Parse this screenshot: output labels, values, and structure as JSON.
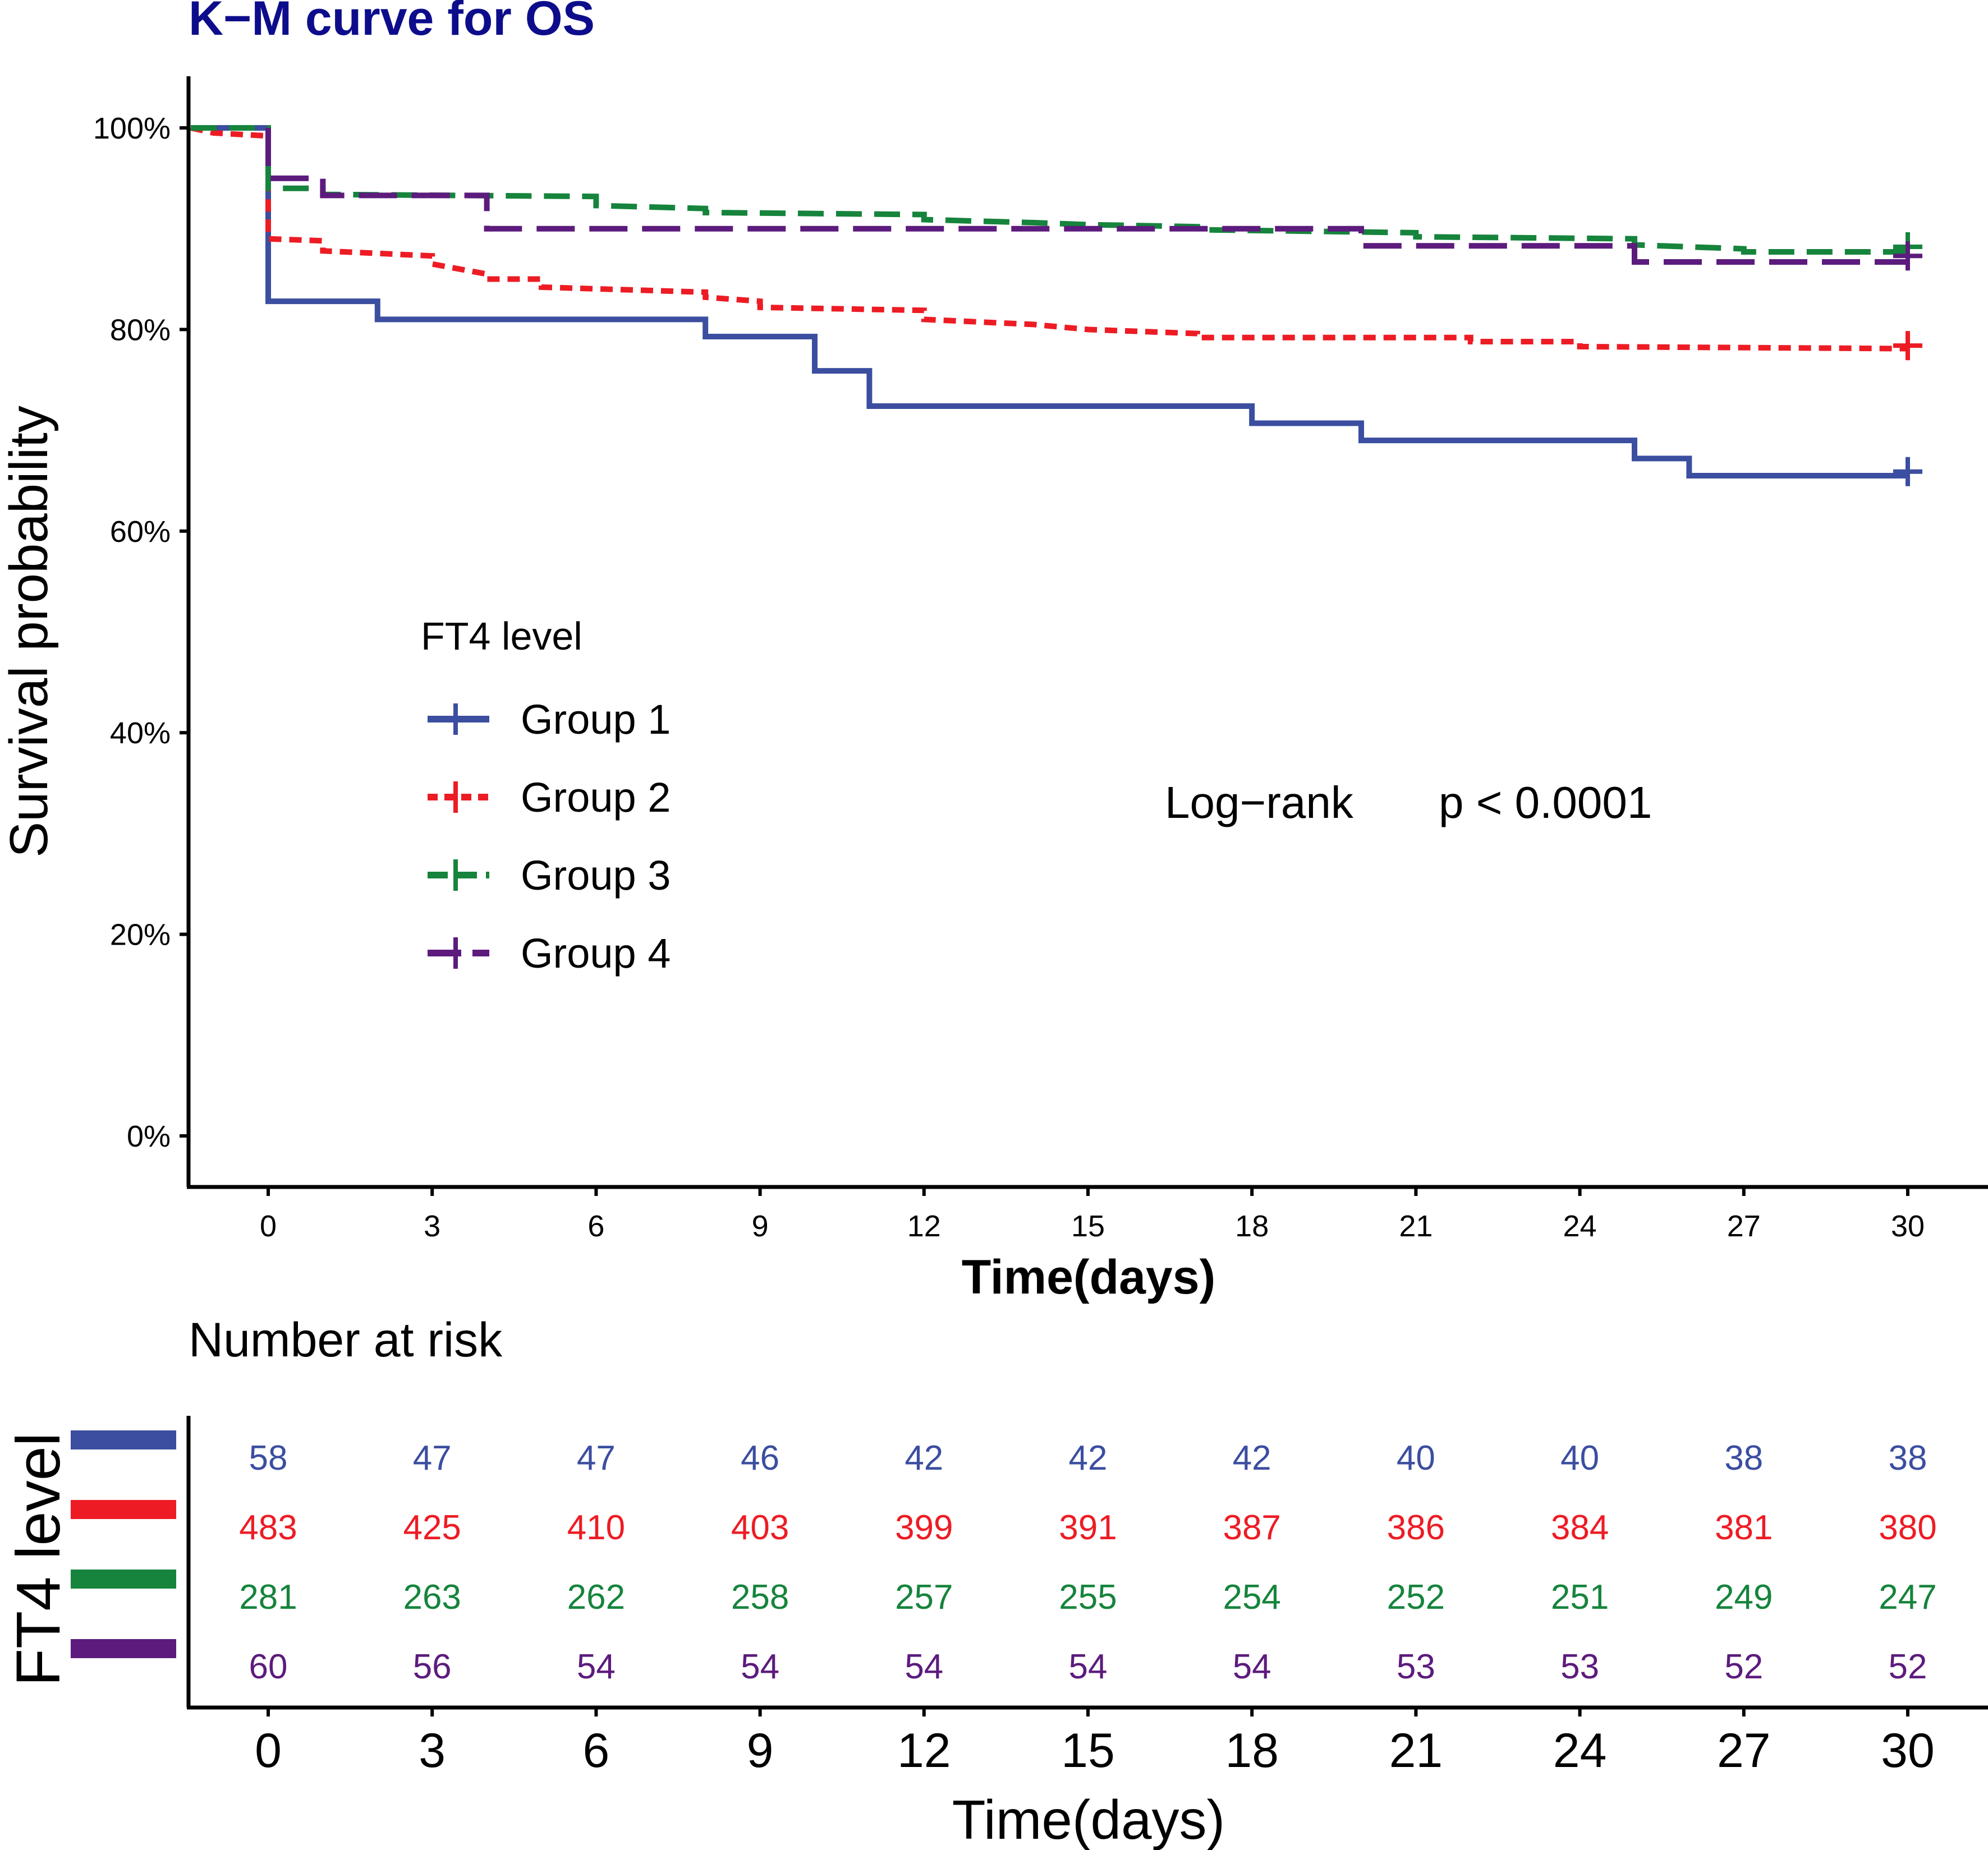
{
  "chart_data": {
    "type": "line",
    "subtype": "kaplan-meier step",
    "title": "K−M curve for OS",
    "title_color": "#0d0d8c",
    "xlabel": "Time(days)",
    "ylabel": "Survival probability",
    "xlim": [
      -1.5,
      31.5
    ],
    "ylim": [
      -5,
      105
    ],
    "xticks": [
      0,
      3,
      6,
      9,
      12,
      15,
      18,
      21,
      24,
      27,
      30
    ],
    "yticks": [
      0,
      20,
      40,
      60,
      80,
      100
    ],
    "ytick_labels": [
      "0%",
      "20%",
      "40%",
      "60%",
      "80%",
      "100%"
    ],
    "legend": {
      "title": "FT4 level",
      "position": "left-middle",
      "labels": [
        "Group 1",
        "Group 2",
        "Group 3",
        "Group 4"
      ]
    },
    "annotation": {
      "method": "Log−rank",
      "pvalue": "p < 0.0001"
    },
    "series": [
      {
        "name": "Group 1",
        "color": "#3b4ea0",
        "dash": "solid",
        "steps": [
          [
            -1.5,
            100
          ],
          [
            0,
            100
          ],
          [
            0,
            82.8
          ],
          [
            2,
            82.8
          ],
          [
            2,
            81
          ],
          [
            8,
            81
          ],
          [
            8,
            79.3
          ],
          [
            10,
            79.3
          ],
          [
            10,
            75.9
          ],
          [
            11,
            75.9
          ],
          [
            11,
            72.4
          ],
          [
            18,
            72.4
          ],
          [
            18,
            70.7
          ],
          [
            20,
            70.7
          ],
          [
            20,
            69
          ],
          [
            25,
            69
          ],
          [
            25,
            67.2
          ],
          [
            26,
            67.2
          ],
          [
            26,
            65.5
          ],
          [
            30,
            65.5
          ]
        ],
        "censor": [
          [
            30,
            65.9
          ]
        ]
      },
      {
        "name": "Group 2",
        "color": "#ed1c24",
        "dash": "dotted",
        "steps": [
          [
            -1.5,
            100
          ],
          [
            -1,
            99.5
          ],
          [
            0,
            99.2
          ],
          [
            0,
            89
          ],
          [
            1,
            88.8
          ],
          [
            1,
            87.8
          ],
          [
            3,
            87.3
          ],
          [
            3,
            86.5
          ],
          [
            4,
            85.5
          ],
          [
            4,
            85
          ],
          [
            5,
            85
          ],
          [
            5,
            84.2
          ],
          [
            8,
            83.7
          ],
          [
            8,
            83.2
          ],
          [
            9,
            82.8
          ],
          [
            9,
            82.2
          ],
          [
            12,
            81.9
          ],
          [
            12,
            81
          ],
          [
            14,
            80.5
          ],
          [
            15,
            80
          ],
          [
            17,
            79.6
          ],
          [
            17,
            79.2
          ],
          [
            22,
            79.2
          ],
          [
            22,
            78.8
          ],
          [
            24,
            78.8
          ],
          [
            24,
            78.3
          ],
          [
            30,
            78.1
          ]
        ],
        "censor": [
          [
            30,
            78.4
          ]
        ]
      },
      {
        "name": "Group 3",
        "color": "#16843c",
        "dash": "dashed",
        "steps": [
          [
            -1.5,
            100
          ],
          [
            0,
            100
          ],
          [
            0,
            94
          ],
          [
            1,
            94
          ],
          [
            1,
            93.4
          ],
          [
            6,
            93.2
          ],
          [
            6,
            92.3
          ],
          [
            8,
            92
          ],
          [
            8,
            91.6
          ],
          [
            12,
            91.4
          ],
          [
            12,
            90.9
          ],
          [
            14,
            90.6
          ],
          [
            15,
            90.4
          ],
          [
            17,
            90.2
          ],
          [
            17,
            89.9
          ],
          [
            21,
            89.6
          ],
          [
            21,
            89.2
          ],
          [
            25,
            89
          ],
          [
            25,
            88.4
          ],
          [
            27,
            88
          ],
          [
            27,
            87.7
          ],
          [
            30,
            87.7
          ]
        ],
        "censor": [
          [
            30,
            88.2
          ]
        ]
      },
      {
        "name": "Group 4",
        "color": "#5c1b7d",
        "dash": "long-dashed",
        "steps": [
          [
            0,
            100
          ],
          [
            0,
            95
          ],
          [
            1,
            95
          ],
          [
            1,
            93.3
          ],
          [
            4,
            93.3
          ],
          [
            4,
            90
          ],
          [
            20,
            90
          ],
          [
            20,
            88.3
          ],
          [
            25,
            88.3
          ],
          [
            25,
            86.7
          ],
          [
            30,
            86.7
          ]
        ],
        "censor": [
          [
            30,
            87.3
          ]
        ]
      }
    ],
    "risk_table": {
      "title": "Number at risk",
      "ylabel": "FT4 level",
      "xlabel": "Time(days)",
      "times": [
        0,
        3,
        6,
        9,
        12,
        15,
        18,
        21,
        24,
        27,
        30
      ],
      "rows": [
        {
          "group": "Group 1",
          "color": "#3b4ea0",
          "values": [
            58,
            47,
            47,
            46,
            42,
            42,
            42,
            40,
            40,
            38,
            38
          ]
        },
        {
          "group": "Group 2",
          "color": "#ed1c24",
          "values": [
            483,
            425,
            410,
            403,
            399,
            391,
            387,
            386,
            384,
            381,
            380
          ]
        },
        {
          "group": "Group 3",
          "color": "#16843c",
          "values": [
            281,
            263,
            262,
            258,
            257,
            255,
            254,
            252,
            251,
            249,
            247
          ]
        },
        {
          "group": "Group 4",
          "color": "#5c1b7d",
          "values": [
            60,
            56,
            54,
            54,
            54,
            54,
            54,
            53,
            53,
            52,
            52
          ]
        }
      ]
    }
  }
}
